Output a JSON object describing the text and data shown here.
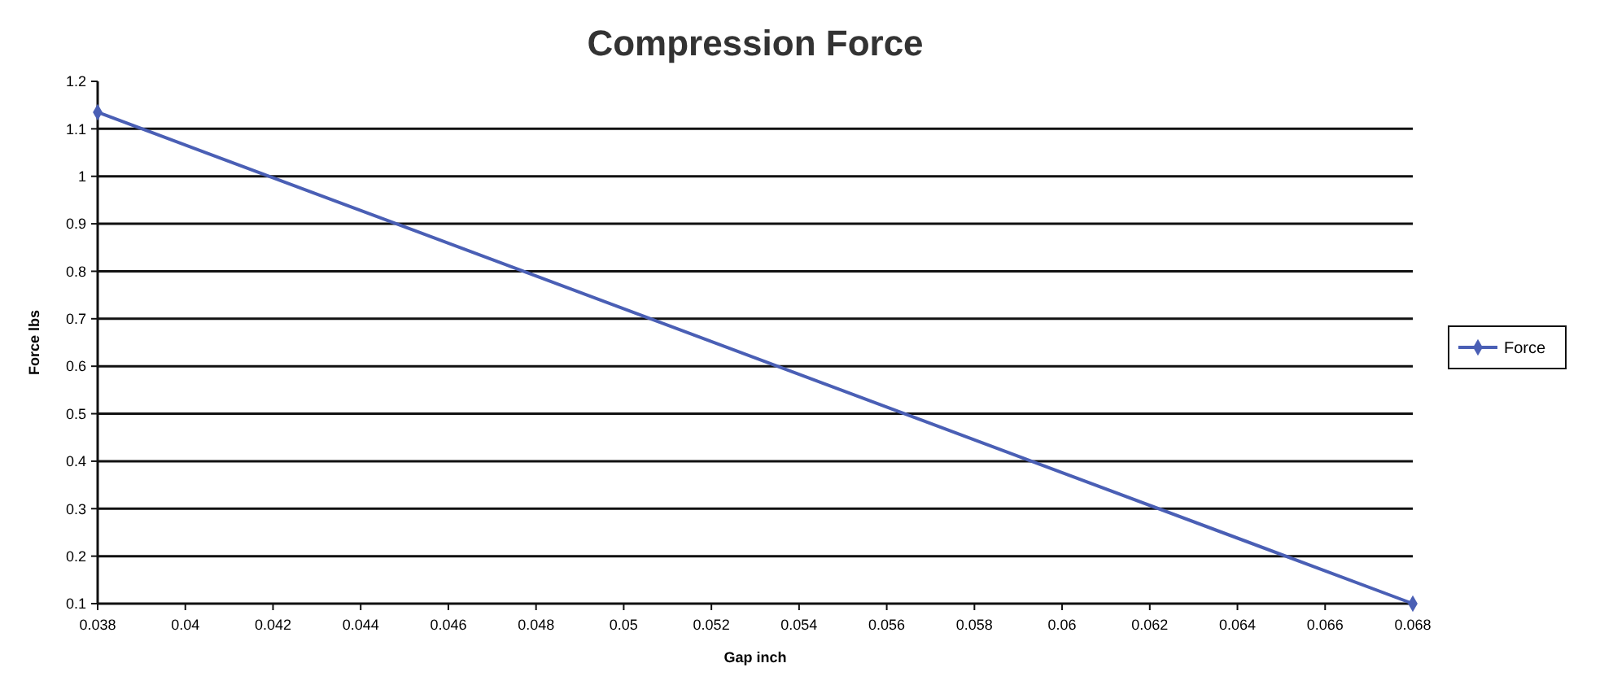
{
  "chart_data": {
    "type": "line",
    "title": "Compression Force",
    "xlabel": "Gap inch",
    "ylabel": "Force lbs",
    "x": [
      0.038,
      0.068
    ],
    "series": [
      {
        "name": "Force",
        "color": "#4a5fb5",
        "values": [
          1.135,
          0.1
        ]
      }
    ],
    "xlim": [
      0.038,
      0.068
    ],
    "xticks": [
      0.038,
      0.04,
      0.042,
      0.044,
      0.046,
      0.048,
      0.05,
      0.052,
      0.054,
      0.056,
      0.058,
      0.06,
      0.062,
      0.064,
      0.066,
      0.068
    ],
    "ylim": [
      0.1,
      1.2
    ],
    "yticks": [
      0.1,
      0.2,
      0.3,
      0.4,
      0.5,
      0.6,
      0.7,
      0.8,
      0.9,
      1,
      1.1,
      1.2
    ],
    "grid": "y",
    "legend": "right",
    "marker": "diamond",
    "line_style": "solid"
  }
}
